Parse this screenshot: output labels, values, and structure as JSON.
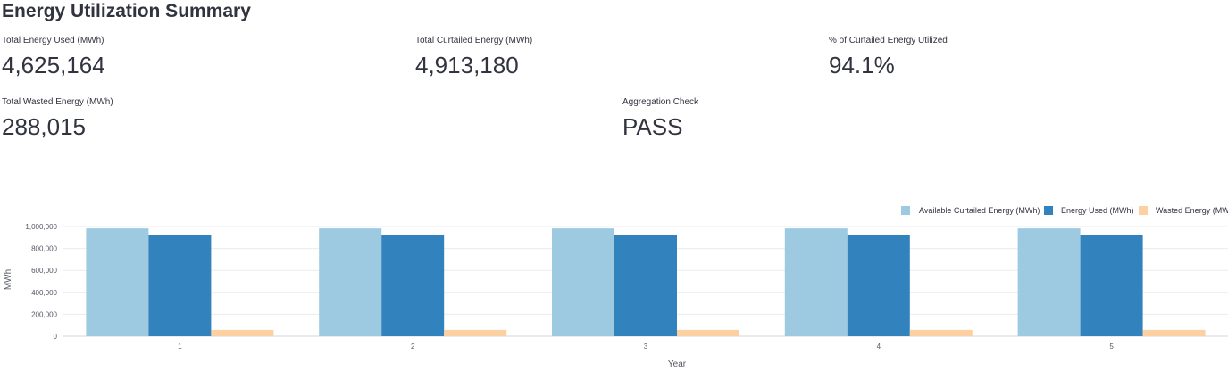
{
  "header": {
    "title": "Energy Utilization Summary"
  },
  "metrics": {
    "total_energy_used": {
      "label": "Total Energy Used (MWh)",
      "value": "4,625,164"
    },
    "total_curtailed": {
      "label": "Total Curtailed Energy (MWh)",
      "value": "4,913,180"
    },
    "pct_utilized": {
      "label": "% of Curtailed Energy Utilized",
      "value": "94.1%"
    },
    "total_wasted": {
      "label": "Total Wasted Energy (MWh)",
      "value": "288,015"
    },
    "aggregation_check": {
      "label": "Aggregation Check",
      "value": "PASS"
    }
  },
  "chart_data": {
    "type": "bar",
    "title": "",
    "xlabel": "Year",
    "ylabel": "MWh",
    "categories": [
      "1",
      "2",
      "3",
      "4",
      "5"
    ],
    "ylim": [
      0,
      1000000
    ],
    "yticks": [
      0,
      200000,
      400000,
      600000,
      800000,
      1000000
    ],
    "ytick_labels": [
      "0",
      "200,000",
      "400,000",
      "600,000",
      "800,000",
      "1,000,000"
    ],
    "grid": true,
    "legend_position": "top-right",
    "series": [
      {
        "name": "Available Curtailed Energy (MWh)",
        "color": "#9ecae1",
        "values": [
          982636,
          982636,
          982636,
          982636,
          982636
        ]
      },
      {
        "name": "Energy Used (MWh)",
        "color": "#3182bd",
        "values": [
          925033,
          925033,
          925033,
          925033,
          925033
        ]
      },
      {
        "name": "Wasted Energy (MWh)",
        "color": "#fdd0a2",
        "values": [
          57603,
          57603,
          57603,
          57603,
          57603
        ]
      }
    ]
  }
}
